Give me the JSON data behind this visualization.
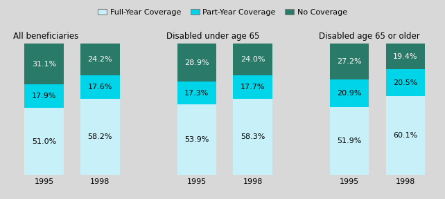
{
  "groups": [
    {
      "title": "All beneficiaries",
      "years": [
        "1995",
        "1998"
      ],
      "full_year": [
        51.0,
        58.2
      ],
      "part_year": [
        17.9,
        17.6
      ],
      "no_coverage": [
        31.1,
        24.2
      ]
    },
    {
      "title": "Disabled under age 65",
      "years": [
        "1995",
        "1998"
      ],
      "full_year": [
        53.9,
        58.3
      ],
      "part_year": [
        17.3,
        17.7
      ],
      "no_coverage": [
        28.9,
        24.0
      ]
    },
    {
      "title": "Disabled age 65 or older",
      "years": [
        "1995",
        "1998"
      ],
      "full_year": [
        51.9,
        60.1
      ],
      "part_year": [
        20.9,
        20.5
      ],
      "no_coverage": [
        27.2,
        19.4
      ]
    }
  ],
  "colors": {
    "full_year": "#c8f0f8",
    "part_year": "#00d4e8",
    "no_coverage": "#2a7a6a"
  },
  "legend_labels": [
    "Full-Year Coverage",
    "Part-Year Coverage",
    "No Coverage"
  ],
  "bar_width": 0.7,
  "background_color": "#d8d8d8",
  "title_fontsize": 8.5,
  "label_fontsize": 8,
  "tick_fontsize": 8,
  "legend_fontsize": 8
}
